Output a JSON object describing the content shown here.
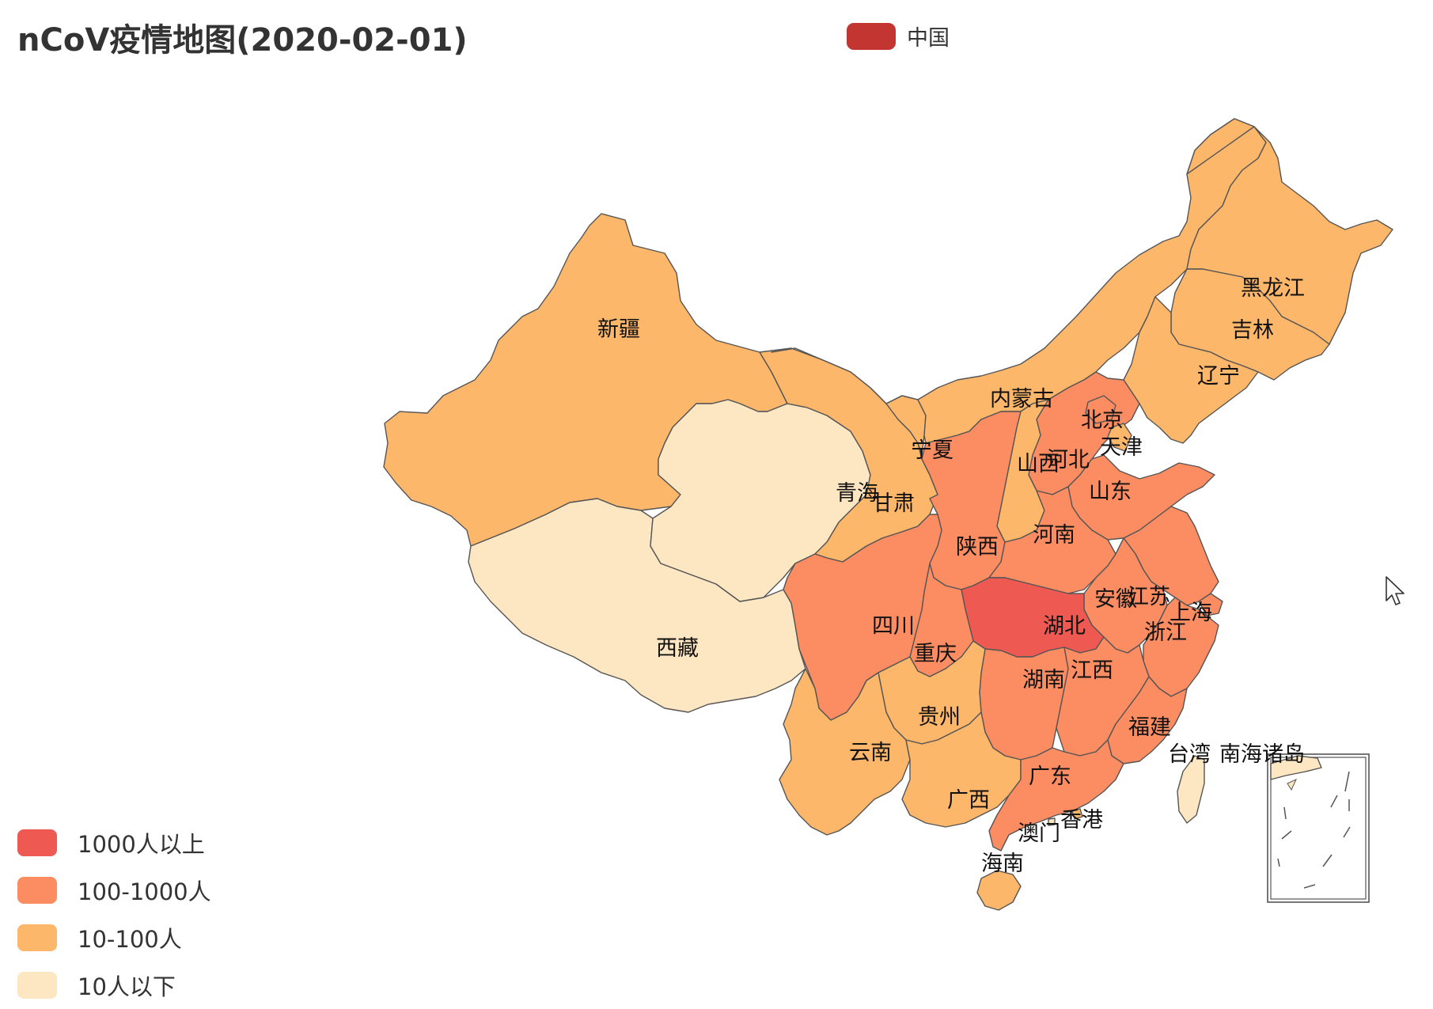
{
  "title": "nCoV疫情地图(2020-02-01)",
  "series_legend": {
    "label": "中国",
    "color": "#c23531"
  },
  "pieces": [
    {
      "label": "1000人以上",
      "color": "#ee5a52"
    },
    {
      "label": "100-1000人",
      "color": "#fc8d62"
    },
    {
      "label": "10-100人",
      "color": "#fdb76b"
    },
    {
      "label": "10人以下",
      "color": "#fde6c2"
    }
  ],
  "provinces": {
    "xinjiang": {
      "name": "新疆",
      "level": 2
    },
    "xizang": {
      "name": "西藏",
      "level": 3
    },
    "qinghai": {
      "name": "青海",
      "level": 3
    },
    "gansu": {
      "name": "甘肃",
      "level": 2
    },
    "ningxia": {
      "name": "宁夏",
      "level": 2
    },
    "neimenggu": {
      "name": "内蒙古",
      "level": 2
    },
    "heilongjiang": {
      "name": "黑龙江",
      "level": 2
    },
    "jilin": {
      "name": "吉林",
      "level": 2
    },
    "liaoning": {
      "name": "辽宁",
      "level": 2
    },
    "beijing": {
      "name": "北京",
      "level": 1
    },
    "tianjin": {
      "name": "天津",
      "level": 2
    },
    "hebei": {
      "name": "河北",
      "level": 1
    },
    "shanxi": {
      "name": "山西",
      "level": 2
    },
    "shandong": {
      "name": "山东",
      "level": 1
    },
    "henan": {
      "name": "河南",
      "level": 1
    },
    "shaanxi": {
      "name": "陕西",
      "level": 1
    },
    "sichuan": {
      "name": "四川",
      "level": 1
    },
    "chongqing": {
      "name": "重庆",
      "level": 1
    },
    "hubei": {
      "name": "湖北",
      "level": 0
    },
    "anhui": {
      "name": "安徽",
      "level": 1
    },
    "jiangsu": {
      "name": "江苏",
      "level": 1
    },
    "shanghai": {
      "name": "上海",
      "level": 1
    },
    "zhejiang": {
      "name": "浙江",
      "level": 1
    },
    "jiangxi": {
      "name": "江西",
      "level": 1
    },
    "hunan": {
      "name": "湖南",
      "level": 1
    },
    "guizhou": {
      "name": "贵州",
      "level": 2
    },
    "yunnan": {
      "name": "云南",
      "level": 2
    },
    "guangxi": {
      "name": "广西",
      "level": 2
    },
    "guangdong": {
      "name": "广东",
      "level": 1
    },
    "fujian": {
      "name": "福建",
      "level": 1
    },
    "taiwan": {
      "name": "台湾",
      "level": 3
    },
    "hainan": {
      "name": "海南",
      "level": 2
    },
    "xianggang": {
      "name": "香港",
      "level": 2
    },
    "aomen": {
      "name": "澳门",
      "level": 3
    },
    "nanhai": {
      "name": "南海诸岛",
      "level": 3
    }
  }
}
